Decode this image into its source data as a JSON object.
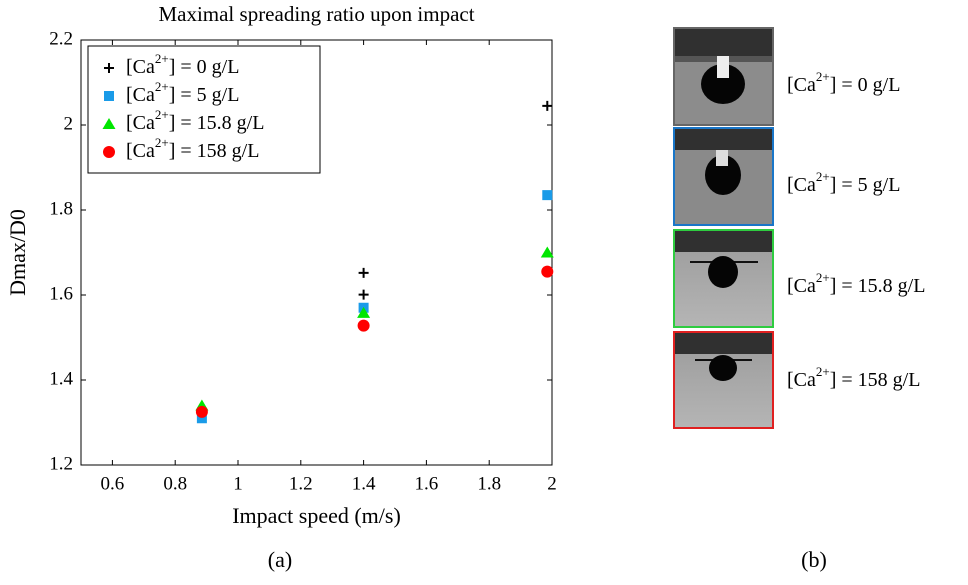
{
  "chart_data": {
    "type": "scatter",
    "title": "Maximal spreading ratio upon impact",
    "xlabel": "Impact speed (m/s)",
    "ylabel": "Dmax/D0",
    "xlim": [
      0.5,
      2.0
    ],
    "ylim": [
      1.2,
      2.2
    ],
    "xticks": [
      0.6,
      0.8,
      1,
      1.2,
      1.4,
      1.6,
      1.8,
      2
    ],
    "yticks": [
      1.2,
      1.4,
      1.6,
      1.8,
      2,
      2.2
    ],
    "grid": false,
    "legend": "upper left",
    "series": [
      {
        "name": "[Ca2+] = 0 g/L",
        "color": "#000000",
        "marker": "plus",
        "x": [
          1.4,
          1.4,
          1.985
        ],
        "values": [
          1.652,
          1.601,
          2.045
        ]
      },
      {
        "name": "[Ca2+] = 5 g/L",
        "color": "#1a9be8",
        "marker": "square",
        "x": [
          0.885,
          1.4,
          1.985
        ],
        "values": [
          1.31,
          1.57,
          1.835
        ]
      },
      {
        "name": "[Ca2+] = 15.8 g/L",
        "color": "#00e600",
        "marker": "triangle",
        "x": [
          0.885,
          1.4,
          1.985
        ],
        "values": [
          1.34,
          1.558,
          1.7
        ]
      },
      {
        "name": "[Ca2+] = 158 g/L",
        "color": "#ff0000",
        "marker": "circle",
        "x": [
          0.885,
          1.4,
          1.985
        ],
        "values": [
          1.325,
          1.528,
          1.655
        ]
      }
    ],
    "captions": [
      "(a)",
      "(b)"
    ]
  }
}
